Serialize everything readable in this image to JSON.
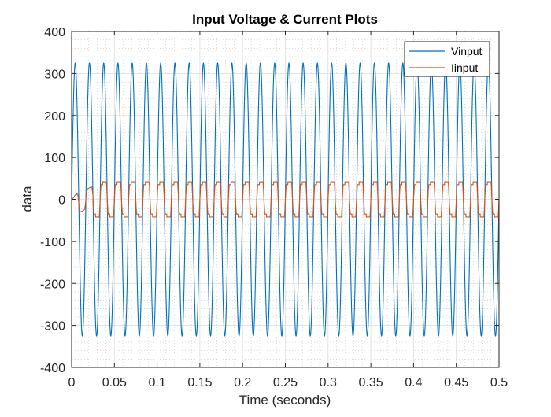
{
  "chart_data": {
    "type": "line",
    "title": "Input Voltage & Current Plots",
    "xlabel": "Time (seconds)",
    "ylabel": "data",
    "xlim": [
      0,
      0.5
    ],
    "ylim": [
      -400,
      400
    ],
    "xticks": [
      "0",
      "0.05",
      "0.1",
      "0.15",
      "0.2",
      "0.25",
      "0.3",
      "0.35",
      "0.4",
      "0.45",
      "0.5"
    ],
    "yticks": [
      "400",
      "300",
      "200",
      "100",
      "0",
      "-100",
      "-200",
      "-300",
      "-400"
    ],
    "grid": true,
    "minor_grid": true,
    "legend_position": "top-right",
    "series": [
      {
        "name": "Vinput",
        "color": "#0072BD",
        "shape": "sine",
        "amplitude": 325,
        "frequency_hz": 60
      },
      {
        "name": "Iinput",
        "color": "#D95319",
        "shape": "stepped-square",
        "amplitude": 42,
        "plateau": 35,
        "frequency_hz": 60,
        "startup_end": 0.025
      }
    ]
  }
}
